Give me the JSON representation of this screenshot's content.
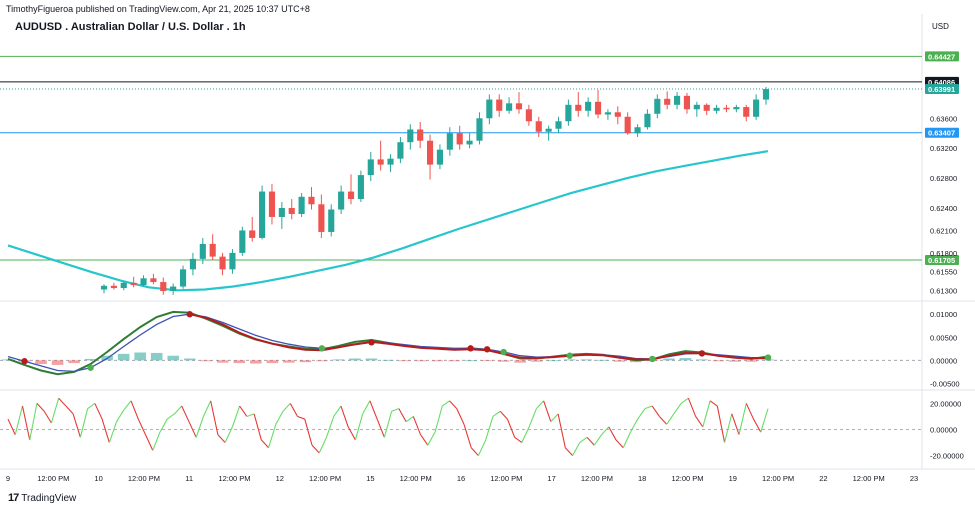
{
  "header": {
    "published_by": "TimothyFigueroa published on TradingView.com, Apr 21, 2025 10:37 UTC+8",
    "title": "AUDUSD . Australian Dollar / U.S. Dollar . 1h",
    "currency": "USD",
    "brand": "TradingView"
  },
  "colors": {
    "up": "#26a69a",
    "down": "#ef5350",
    "ema": "#26c6cc",
    "green_level": "#4caf50",
    "blue_level": "#2196f3",
    "black_level": "#131722",
    "macd_line": "#2e7d32",
    "signal_line": "#b71c1c",
    "blue_line": "#3f51b5",
    "osc_up": "#66dd66",
    "osc_down": "#e53935"
  },
  "chart_data": [
    {
      "type": "candlestick",
      "title": "AUDUSD . Australian Dollar / U.S. Dollar . 1h",
      "x_ticks": [
        "9",
        "12:00 PM",
        "10",
        "12:00 PM",
        "11",
        "12:00 PM",
        "12",
        "12:00 PM",
        "15",
        "12:00 PM",
        "16",
        "12:00 PM",
        "17",
        "12:00 PM",
        "18",
        "12:00 PM",
        "19",
        "12:00 PM",
        "22",
        "12:00 PM",
        "23"
      ],
      "y_ticks": [
        0.636,
        0.632,
        0.628,
        0.624,
        0.621,
        0.618,
        0.6155,
        0.613
      ],
      "ylim": [
        0.6117,
        0.647
      ],
      "price_levels": [
        {
          "label": "0.64427",
          "value": 0.64427,
          "color": "#4caf50",
          "style": "solid"
        },
        {
          "label": "0.64086",
          "value": 0.64086,
          "color": "#131722",
          "style": "solid"
        },
        {
          "label": "0.63991",
          "value": 0.63991,
          "color": "#26a69a",
          "style": "dotted"
        },
        {
          "label": "0.63407",
          "value": 0.63407,
          "color": "#2196f3",
          "style": "solid"
        },
        {
          "label": "0.61705",
          "value": 0.61705,
          "color": "#4caf50",
          "style": "solid"
        }
      ],
      "ema_series": [
        0.619,
        0.6178,
        0.6166,
        0.6154,
        0.6143,
        0.6134,
        0.613,
        0.6131,
        0.6135,
        0.6141,
        0.6148,
        0.6156,
        0.6164,
        0.6174,
        0.6186,
        0.6199,
        0.6212,
        0.6224,
        0.6236,
        0.6248,
        0.626,
        0.627,
        0.628,
        0.6289,
        0.6296,
        0.6303,
        0.631,
        0.6316
      ],
      "candles": [
        [
          0.6131,
          0.6138,
          0.6126,
          0.6136
        ],
        [
          0.6136,
          0.614,
          0.6131,
          0.6133
        ],
        [
          0.6133,
          0.6142,
          0.613,
          0.614
        ],
        [
          0.614,
          0.6148,
          0.6134,
          0.6137
        ],
        [
          0.6137,
          0.615,
          0.6135,
          0.6146
        ],
        [
          0.6146,
          0.6152,
          0.6138,
          0.6141
        ],
        [
          0.6141,
          0.6147,
          0.6124,
          0.6129
        ],
        [
          0.6129,
          0.6139,
          0.6124,
          0.6135
        ],
        [
          0.6135,
          0.6163,
          0.6132,
          0.6158
        ],
        [
          0.6158,
          0.618,
          0.615,
          0.6172
        ],
        [
          0.6172,
          0.62,
          0.6165,
          0.6192
        ],
        [
          0.6192,
          0.6205,
          0.617,
          0.6175
        ],
        [
          0.6175,
          0.618,
          0.615,
          0.6158
        ],
        [
          0.6158,
          0.6185,
          0.6152,
          0.618
        ],
        [
          0.618,
          0.6215,
          0.6176,
          0.621
        ],
        [
          0.621,
          0.6228,
          0.6195,
          0.62
        ],
        [
          0.62,
          0.627,
          0.6198,
          0.6262
        ],
        [
          0.6262,
          0.6272,
          0.6218,
          0.6228
        ],
        [
          0.6228,
          0.6248,
          0.6212,
          0.624
        ],
        [
          0.624,
          0.6252,
          0.6225,
          0.6232
        ],
        [
          0.6232,
          0.626,
          0.6228,
          0.6255
        ],
        [
          0.6255,
          0.6268,
          0.6238,
          0.6245
        ],
        [
          0.6245,
          0.6258,
          0.62,
          0.6208
        ],
        [
          0.6208,
          0.6245,
          0.6202,
          0.6238
        ],
        [
          0.6238,
          0.627,
          0.6232,
          0.6262
        ],
        [
          0.6262,
          0.6285,
          0.6245,
          0.6252
        ],
        [
          0.6252,
          0.629,
          0.6248,
          0.6284
        ],
        [
          0.6284,
          0.6315,
          0.6276,
          0.6305
        ],
        [
          0.6305,
          0.633,
          0.629,
          0.6298
        ],
        [
          0.6298,
          0.6312,
          0.6288,
          0.6306
        ],
        [
          0.6306,
          0.6335,
          0.63,
          0.6328
        ],
        [
          0.6328,
          0.6352,
          0.6318,
          0.6345
        ],
        [
          0.6345,
          0.6355,
          0.632,
          0.633
        ],
        [
          0.633,
          0.6338,
          0.6278,
          0.6298
        ],
        [
          0.6298,
          0.6325,
          0.6292,
          0.6318
        ],
        [
          0.6318,
          0.6348,
          0.631,
          0.634
        ],
        [
          0.634,
          0.635,
          0.6318,
          0.6325
        ],
        [
          0.6325,
          0.634,
          0.632,
          0.633
        ],
        [
          0.633,
          0.6368,
          0.6325,
          0.636
        ],
        [
          0.636,
          0.6392,
          0.6352,
          0.6385
        ],
        [
          0.6385,
          0.6392,
          0.6362,
          0.637
        ],
        [
          0.637,
          0.6388,
          0.6366,
          0.638
        ],
        [
          0.638,
          0.6395,
          0.6366,
          0.6372
        ],
        [
          0.6372,
          0.6378,
          0.635,
          0.6356
        ],
        [
          0.6356,
          0.6362,
          0.6335,
          0.6342
        ],
        [
          0.6342,
          0.635,
          0.633,
          0.6346
        ],
        [
          0.6346,
          0.6362,
          0.634,
          0.6356
        ],
        [
          0.6356,
          0.6385,
          0.635,
          0.6378
        ],
        [
          0.6378,
          0.6395,
          0.6362,
          0.637
        ],
        [
          0.637,
          0.6388,
          0.6362,
          0.6382
        ],
        [
          0.6382,
          0.6398,
          0.636,
          0.6365
        ],
        [
          0.6365,
          0.6372,
          0.6358,
          0.6368
        ],
        [
          0.6368,
          0.6376,
          0.6352,
          0.6362
        ],
        [
          0.6362,
          0.6368,
          0.6338,
          0.634
        ],
        [
          0.634,
          0.6352,
          0.6335,
          0.6348
        ],
        [
          0.6348,
          0.6372,
          0.6345,
          0.6366
        ],
        [
          0.6366,
          0.6392,
          0.636,
          0.6386
        ],
        [
          0.6386,
          0.6396,
          0.6372,
          0.6378
        ],
        [
          0.6378,
          0.6395,
          0.6372,
          0.639
        ],
        [
          0.639,
          0.6394,
          0.6366,
          0.6372
        ],
        [
          0.6372,
          0.6382,
          0.6362,
          0.6378
        ],
        [
          0.6378,
          0.638,
          0.6364,
          0.637
        ],
        [
          0.637,
          0.6378,
          0.6366,
          0.6374
        ],
        [
          0.6374,
          0.6378,
          0.6368,
          0.6372
        ],
        [
          0.6372,
          0.6378,
          0.6368,
          0.6375
        ],
        [
          0.6375,
          0.6378,
          0.6356,
          0.6362
        ],
        [
          0.6362,
          0.6392,
          0.6358,
          0.6385
        ],
        [
          0.6385,
          0.6402,
          0.6378,
          0.6399
        ]
      ]
    },
    {
      "type": "line",
      "title": "",
      "y_ticks": [
        0.01,
        0.005,
        0.0,
        -0.005
      ],
      "ylim": [
        -0.006,
        0.012
      ],
      "series": [
        {
          "color": "#2e7d32",
          "values": [
            0.0003,
            -0.001,
            -0.0022,
            -0.003,
            -0.0025,
            -0.0008,
            0.0018,
            0.0046,
            0.0072,
            0.0094,
            0.0105,
            0.0103,
            0.009,
            0.0075,
            0.0058,
            0.0045,
            0.0036,
            0.003,
            0.0025,
            0.0024,
            0.0031,
            0.004,
            0.0044,
            0.0038,
            0.0032,
            0.0028,
            0.0026,
            0.0024,
            0.0026,
            0.0023,
            0.0014,
            0.0004,
            0.0004,
            0.0008,
            0.0012,
            0.0014,
            0.0012,
            0.0006,
            0.0,
            0.0002,
            0.0013,
            0.002,
            0.0017,
            0.001,
            0.0006,
            0.0003,
            0.0008
          ]
        },
        {
          "color": "#3f51b5",
          "values": [
            0.0008,
            -0.0002,
            -0.0012,
            -0.0022,
            -0.0024,
            -0.0016,
            0.0004,
            0.003,
            0.0055,
            0.0078,
            0.0095,
            0.01,
            0.0094,
            0.0082,
            0.0068,
            0.0054,
            0.0043,
            0.0035,
            0.0029,
            0.0026,
            0.0028,
            0.0034,
            0.0039,
            0.0038,
            0.0034,
            0.003,
            0.0028,
            0.0026,
            0.0026,
            0.0024,
            0.0018,
            0.001,
            0.0007,
            0.0008,
            0.001,
            0.0012,
            0.0012,
            0.0009,
            0.0004,
            0.0003,
            0.0008,
            0.0014,
            0.0015,
            0.0012,
            0.0009,
            0.0006,
            0.0006
          ]
        },
        {
          "color": "#b71c1c",
          "values": [
            null,
            null,
            null,
            null,
            null,
            null,
            null,
            null,
            null,
            null,
            null,
            0.01,
            0.0092,
            0.0078,
            0.006,
            0.0046,
            0.0036,
            0.0028,
            0.0023,
            0.0022,
            0.0028,
            0.0035,
            0.004,
            0.0036,
            0.0031,
            0.0027,
            0.0025,
            0.0023,
            0.0024,
            0.0022,
            0.0014,
            0.0006,
            0.0005,
            0.0007,
            0.001,
            0.0012,
            0.0011,
            0.0006,
            0.0002,
            0.0002,
            0.001,
            0.0016,
            0.0015,
            0.001,
            0.0006,
            0.0004,
            0.0005
          ]
        }
      ],
      "histogram": [
        0.0002,
        -0.0003,
        -0.0008,
        -0.001,
        -0.0006,
        0.0003,
        0.001,
        0.0014,
        0.0017,
        0.0016,
        0.001,
        0.0004,
        -0.0002,
        -0.0005,
        -0.0006,
        -0.0007,
        -0.0006,
        -0.0005,
        -0.0004,
        -0.0002,
        0.0002,
        0.0004,
        0.0004,
        0.0001,
        -0.0001,
        -0.0002,
        -0.0002,
        -0.0002,
        0.0,
        -0.0001,
        -0.0003,
        -0.0005,
        -0.0003,
        0.0,
        0.0002,
        0.0002,
        0.0001,
        -0.0003,
        -0.0004,
        -0.0001,
        0.0004,
        0.0005,
        0.0002,
        -0.0002,
        -0.0003,
        -0.0003,
        0.0002
      ],
      "cross_markers": [
        {
          "index": 1,
          "color": "#b71c1c"
        },
        {
          "index": 5,
          "color": "#4caf50"
        },
        {
          "index": 11,
          "color": "#b71c1c"
        },
        {
          "index": 19,
          "color": "#4caf50"
        },
        {
          "index": 22,
          "color": "#b71c1c"
        },
        {
          "index": 28,
          "color": "#b71c1c"
        },
        {
          "index": 29,
          "color": "#b71c1c"
        },
        {
          "index": 30,
          "color": "#4caf50"
        },
        {
          "index": 34,
          "color": "#4caf50"
        },
        {
          "index": 39,
          "color": "#4caf50"
        },
        {
          "index": 42,
          "color": "#b71c1c"
        },
        {
          "index": 46,
          "color": "#4caf50"
        }
      ]
    },
    {
      "type": "line",
      "title": "",
      "y_ticks": [
        20.0,
        0.0,
        -20.0
      ],
      "ylim": [
        -28,
        28
      ],
      "values": [
        8,
        -4,
        18,
        -8,
        20,
        14,
        5,
        24,
        18,
        12,
        -6,
        16,
        20,
        8,
        -10,
        6,
        15,
        22,
        8,
        -4,
        -16,
        -2,
        8,
        12,
        18,
        6,
        -6,
        10,
        22,
        -4,
        -10,
        2,
        18,
        10,
        12,
        -8,
        -14,
        4,
        14,
        20,
        10,
        8,
        -12,
        -18,
        -6,
        10,
        18,
        2,
        -8,
        12,
        22,
        8,
        -6,
        14,
        16,
        6,
        10,
        -4,
        -12,
        -2,
        18,
        22,
        16,
        4,
        -14,
        -20,
        -8,
        10,
        14,
        8,
        -6,
        -10,
        2,
        16,
        22,
        6,
        12,
        -14,
        -20,
        -10,
        -6,
        -12,
        -4,
        2,
        -8,
        -14,
        -2,
        8,
        16,
        18,
        10,
        4,
        12,
        20,
        24,
        10,
        2,
        22,
        18,
        -10,
        12,
        -4,
        20,
        8,
        -2,
        16
      ]
    }
  ]
}
